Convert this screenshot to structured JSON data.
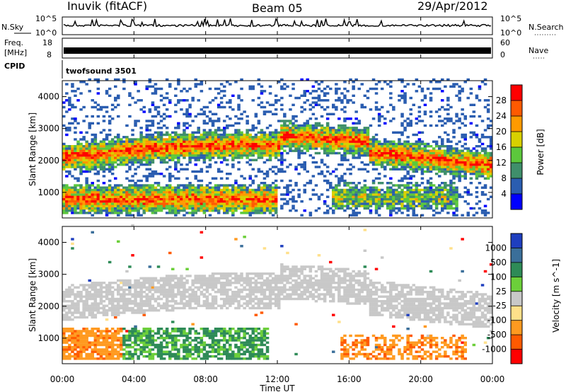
{
  "header": {
    "station": "Inuvik (fitACF)",
    "beam": "Beam 05",
    "date": "29/Apr/2012"
  },
  "panels": {
    "nsky_label": "N.Sky",
    "nsky_ticks": [
      "10^5",
      "10^0"
    ],
    "nsearch_label": "N.Search",
    "nsearch_ticks": [
      "10^5",
      "10^0"
    ],
    "freq_label": [
      "Freq.",
      "[MHz]"
    ],
    "freq_ticks": [
      "18",
      "8"
    ],
    "nave_label": "Nave",
    "nave_ticks": [
      "60",
      "0"
    ],
    "cpid_label": "CPID",
    "cpid_value": "twofsound 3501"
  },
  "chart_data": [
    {
      "type": "heatmap",
      "title": "",
      "xlabel": "Time UT",
      "ylabel": "Slant Range [km]",
      "x_ticks": [
        "00:00",
        "04:00",
        "08:00",
        "12:00",
        "16:00",
        "20:00",
        "00:00"
      ],
      "y_ticks": [
        1000,
        2000,
        3000,
        4000
      ],
      "ylim": [
        200,
        4500
      ],
      "colorbar_label": "Power [dB]",
      "colorbar_ticks": [
        4,
        8,
        12,
        16,
        20,
        24,
        28
      ],
      "colorbar_colors": [
        "#0000ff",
        "#2a5db0",
        "#3f8f6b",
        "#5cc83c",
        "#d8d000",
        "#ff9a00",
        "#ff5a00",
        "#ff0000"
      ],
      "features": [
        {
          "name": "band-upper",
          "t_start_h": 0,
          "t_end_h": 24,
          "range_km": [
            1500,
            2600
          ]
        },
        {
          "name": "band-lower",
          "t_start_h": 0,
          "t_end_h": 12,
          "range_km": [
            300,
            1200
          ]
        }
      ]
    },
    {
      "type": "heatmap",
      "title": "",
      "xlabel": "Time UT",
      "ylabel": "Slant Range [km]",
      "x_ticks": [
        "00:00",
        "04:00",
        "08:00",
        "12:00",
        "16:00",
        "20:00",
        "00:00"
      ],
      "y_ticks": [
        1000,
        2000,
        3000,
        4000
      ],
      "ylim": [
        200,
        4500
      ],
      "colorbar_label": "Velocity [m s^-1]",
      "colorbar_ticks": [
        "1000",
        "500",
        "100",
        "25",
        "-25",
        "-100",
        "-500",
        "-1000"
      ],
      "colorbar_colors": [
        "#1f3fbf",
        "#3b6f9a",
        "#2e8b57",
        "#6ccf3a",
        "#c8c8c8",
        "#ffe08a",
        "#ff9a20",
        "#ff5a00",
        "#ff0000"
      ]
    }
  ]
}
